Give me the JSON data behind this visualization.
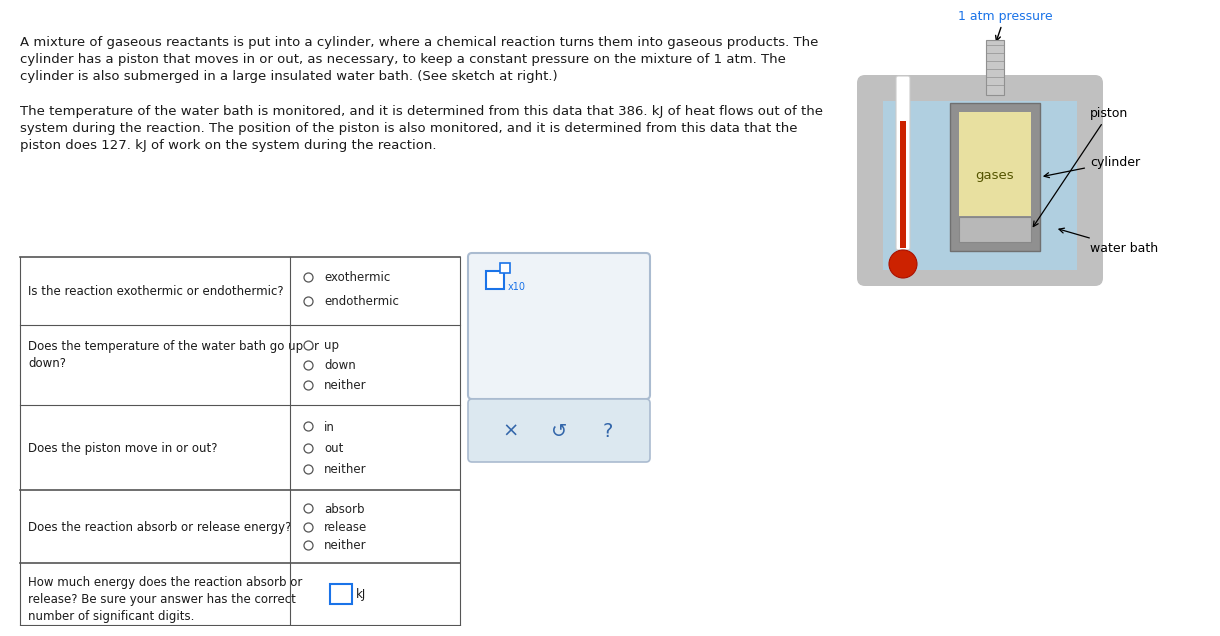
{
  "bg_color": "#ffffff",
  "text_color": "#1a1a1a",
  "blue_color": "#1a73e8",
  "para1_line1": "A mixture of gaseous reactants is put into a cylinder, where a chemical reaction turns them into gaseous products. The",
  "para1_line2": "cylinder has a piston that moves in or out, as necessary, to keep a constant pressure on the mixture of 1 atm. The",
  "para1_line3": "cylinder is also submerged in a large insulated water bath. (See sketch at right.)",
  "para2_line1": "The temperature of the water bath is monitored, and it is determined from this data that 386. kJ of heat flows out of the",
  "para2_line2": "system during the reaction. The position of the piston is also monitored, and it is determined from this data that the",
  "para2_line3": "piston does 127. kJ of work on the system during the reaction.",
  "q1_label": "Is the reaction exothermic or endothermic?",
  "q1_options": [
    "exothermic",
    "endothermic"
  ],
  "q2_label_l1": "Does the temperature of the water bath go up or",
  "q2_label_l2": "down?",
  "q2_options": [
    "up",
    "down",
    "neither"
  ],
  "q3_label": "Does the piston move in or out?",
  "q3_options": [
    "in",
    "out",
    "neither"
  ],
  "q4_label": "Does the reaction absorb or release energy?",
  "q4_options": [
    "absorb",
    "release",
    "neither"
  ],
  "q5_label_l1": "How much energy does the reaction absorb or",
  "q5_label_l2": "release? Be sure your answer has the correct",
  "q5_label_l3": "number of significant digits.",
  "q5_unit": "kJ",
  "diag_pressure": "1 atm pressure",
  "diag_piston": "piston",
  "diag_cylinder": "cylinder",
  "diag_waterbath": "water bath",
  "diag_gases": "gases",
  "font_size": 9.5,
  "font_size_small": 8.5
}
